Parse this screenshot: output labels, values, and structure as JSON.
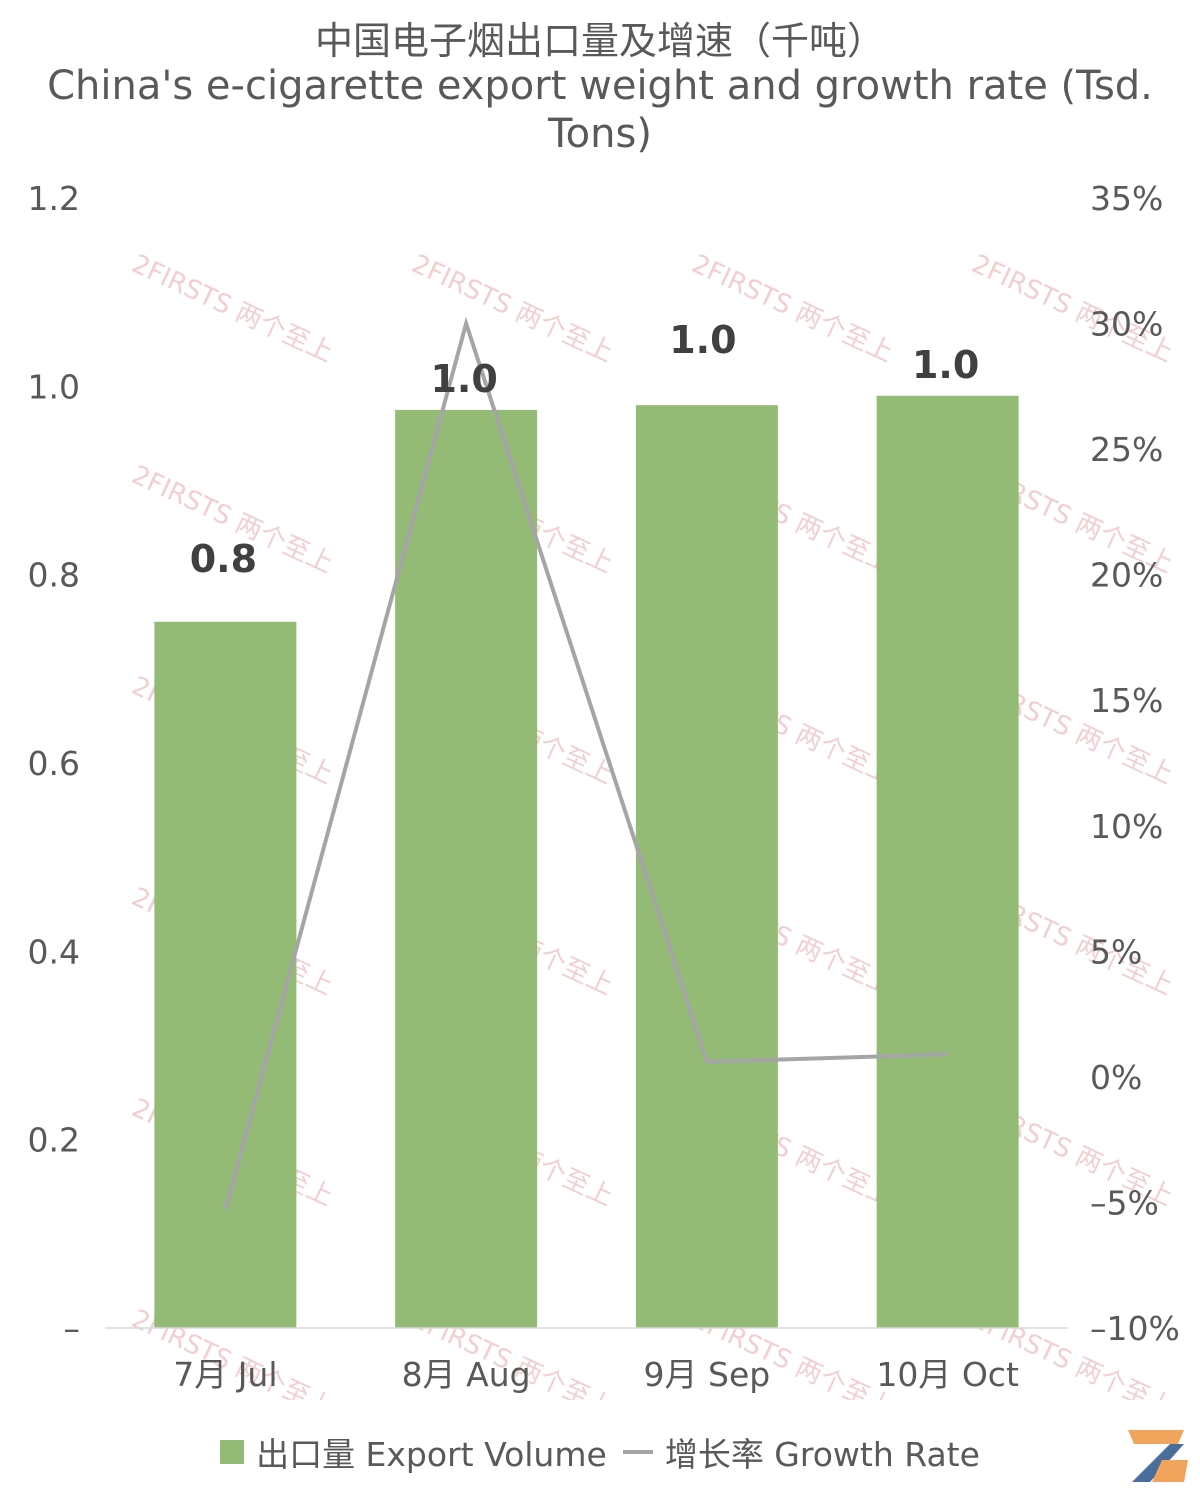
{
  "title_cn": "中国电子烟出口量及增速（千吨）",
  "title_en": "China's e-cigarette export weight and growth rate (Tsd. Tons)",
  "colors": {
    "bar": "#93BB76",
    "line": "#A5A5A5",
    "text": "#595959",
    "label": "#404040",
    "axis": "#D9D9D9",
    "watermark": "#E8A8A8"
  },
  "watermark_text": "2FIRSTS 两个至上",
  "chart_data": {
    "type": "bar",
    "categories": [
      "7月 Jul",
      "8月 Aug",
      "9月 Sep",
      "10月 Oct"
    ],
    "series": [
      {
        "name": "出口量 Export Volume",
        "type": "bar",
        "axis": "left",
        "values": [
          0.75,
          0.975,
          0.98,
          0.99
        ],
        "data_labels": [
          "0.8",
          "1.0",
          "1.0",
          "1.0"
        ]
      },
      {
        "name": "增长率 Growth Rate",
        "type": "line",
        "axis": "right",
        "values": [
          -5.3,
          30.0,
          0.6,
          0.9
        ]
      }
    ],
    "y_left": {
      "range": [
        0,
        1.2
      ],
      "ticks": [
        0,
        0.2,
        0.4,
        0.6,
        0.8,
        1.0,
        1.2
      ],
      "tick_labels": [
        "–",
        "0.2",
        "0.4",
        "0.6",
        "0.8",
        "1.0",
        "1.2"
      ]
    },
    "y_right": {
      "range": [
        -10,
        35
      ],
      "ticks": [
        -10,
        -5,
        0,
        5,
        10,
        15,
        20,
        25,
        30,
        35
      ],
      "tick_labels": [
        "–10%",
        "–5%",
        "0%",
        "5%",
        "10%",
        "15%",
        "20%",
        "25%",
        "30%",
        "35%"
      ]
    },
    "grid": false,
    "legend": "bottom"
  },
  "legend": {
    "bar_label": "出口量 Export Volume",
    "line_label": "增长率 Growth Rate"
  }
}
